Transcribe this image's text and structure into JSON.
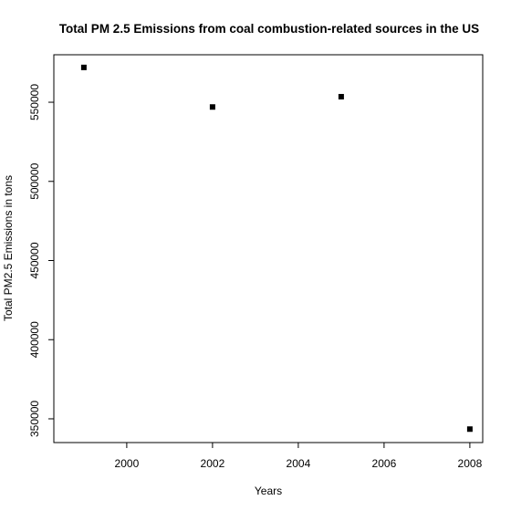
{
  "chart_data": {
    "type": "scatter",
    "title": "Total PM 2.5 Emissions from coal combustion-related sources in the US",
    "xlabel": "Years",
    "ylabel": "Total PM2.5 Emissions in tons",
    "x": [
      1999,
      2002,
      2005,
      2008
    ],
    "y": [
      572000,
      547000,
      553500,
      343500
    ],
    "xlim": [
      1998.3,
      2008.3
    ],
    "ylim": [
      335000,
      580000
    ],
    "xticks": [
      2000,
      2002,
      2004,
      2006,
      2008
    ],
    "yticks": [
      350000,
      400000,
      450000,
      500000,
      550000
    ],
    "grid": false,
    "marker": "square",
    "color": "#000000"
  }
}
